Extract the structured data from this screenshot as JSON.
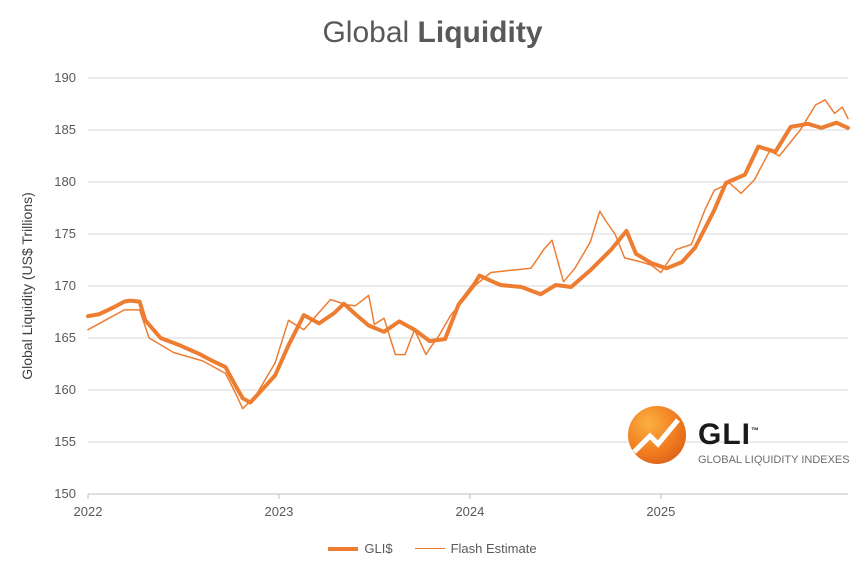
{
  "chart_data": {
    "type": "line",
    "title_normal": "Global",
    "title_bold": "Liquidity",
    "xlabel": "",
    "ylabel": "Global Liquidity (US$ Trillions)",
    "ylim": [
      150,
      190
    ],
    "yticks": [
      "150",
      "155",
      "160",
      "165",
      "170",
      "175",
      "180",
      "185",
      "190"
    ],
    "xlim": [
      2022,
      2025.98
    ],
    "xticks": [
      {
        "value": 2022,
        "label": "2022"
      },
      {
        "value": 2023,
        "label": "2023"
      },
      {
        "value": 2024,
        "label": "2024"
      },
      {
        "value": 2025,
        "label": "2025"
      }
    ],
    "grid": true,
    "legend_position": "bottom",
    "series": [
      {
        "name": "GLI$",
        "color": "#ED7D31",
        "width": 4,
        "x": [
          2022.0,
          2022.06,
          2022.14,
          2022.19,
          2022.22,
          2022.27,
          2022.3,
          2022.38,
          2022.48,
          2022.59,
          2022.64,
          2022.72,
          2022.77,
          2022.81,
          2022.85,
          2022.9,
          2022.98,
          2023.05,
          2023.13,
          2023.21,
          2023.29,
          2023.34,
          2023.4,
          2023.47,
          2023.55,
          2023.63,
          2023.71,
          2023.79,
          2023.87,
          2023.94,
          2024.02,
          2024.05,
          2024.11,
          2024.16,
          2024.27,
          2024.37,
          2024.45,
          2024.53,
          2024.63,
          2024.74,
          2024.82,
          2024.87,
          2024.95,
          2025.03,
          2025.11,
          2025.18,
          2025.28,
          2025.34,
          2025.44,
          2025.51,
          2025.6,
          2025.68,
          2025.77,
          2025.84,
          2025.92,
          2025.98
        ],
        "y": [
          167.1,
          167.3,
          168.0,
          168.5,
          168.6,
          168.5,
          166.7,
          165.0,
          164.3,
          163.4,
          162.9,
          162.2,
          160.5,
          159.2,
          158.8,
          159.8,
          161.4,
          164.3,
          167.2,
          166.4,
          167.4,
          168.3,
          167.3,
          166.2,
          165.6,
          166.6,
          165.8,
          164.7,
          164.9,
          168.2,
          170.1,
          171.0,
          170.5,
          170.1,
          169.9,
          169.2,
          170.1,
          169.9,
          171.5,
          173.5,
          175.3,
          173.1,
          172.2,
          171.7,
          172.3,
          173.7,
          177.3,
          179.9,
          180.7,
          183.4,
          182.9,
          185.3,
          185.6,
          185.2,
          185.7,
          185.2
        ]
      },
      {
        "name": "Flash  Estimate",
        "color": "#ED7D31",
        "width": 1.5,
        "x": [
          2022.0,
          2022.12,
          2022.19,
          2022.27,
          2022.32,
          2022.45,
          2022.6,
          2022.72,
          2022.77,
          2022.81,
          2022.88,
          2022.98,
          2023.05,
          2023.13,
          2023.27,
          2023.35,
          2023.4,
          2023.47,
          2023.5,
          2023.55,
          2023.61,
          2023.66,
          2023.71,
          2023.77,
          2023.79,
          2023.84,
          2023.9,
          2023.97,
          2024.03,
          2024.11,
          2024.21,
          2024.32,
          2024.39,
          2024.43,
          2024.49,
          2024.55,
          2024.63,
          2024.68,
          2024.71,
          2024.76,
          2024.81,
          2024.9,
          2024.95,
          2025.0,
          2025.08,
          2025.16,
          2025.23,
          2025.28,
          2025.36,
          2025.42,
          2025.49,
          2025.57,
          2025.62,
          2025.73,
          2025.81,
          2025.86,
          2025.91,
          2025.95,
          2025.98
        ],
        "y": [
          165.8,
          167.0,
          167.7,
          167.7,
          165.0,
          163.6,
          162.8,
          161.6,
          159.8,
          158.2,
          159.5,
          162.6,
          166.7,
          165.8,
          168.7,
          168.2,
          168.1,
          169.1,
          166.3,
          166.9,
          163.4,
          163.4,
          165.8,
          163.4,
          164.0,
          165.3,
          167.2,
          168.7,
          170.1,
          171.3,
          171.5,
          171.7,
          173.6,
          174.4,
          170.4,
          171.7,
          174.2,
          177.2,
          176.3,
          175.0,
          172.7,
          172.3,
          172.0,
          171.3,
          173.5,
          174.0,
          177.3,
          179.2,
          179.9,
          178.9,
          180.2,
          183.0,
          182.5,
          185.0,
          187.4,
          187.9,
          186.6,
          187.2,
          186.1
        ]
      }
    ]
  },
  "logo": {
    "name": "GLI",
    "tm": "™",
    "tagline": "GLOBAL LIQUIDITY INDEXES"
  }
}
